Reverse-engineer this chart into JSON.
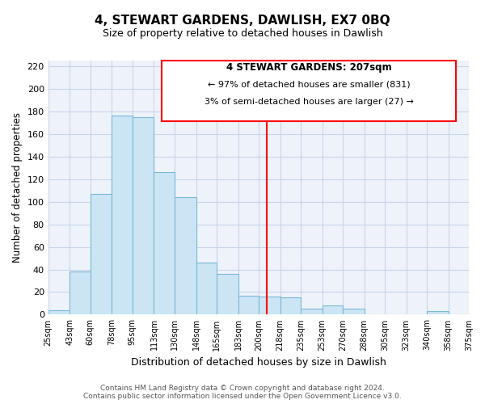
{
  "title": "4, STEWART GARDENS, DAWLISH, EX7 0BQ",
  "subtitle": "Size of property relative to detached houses in Dawlish",
  "xlabel": "Distribution of detached houses by size in Dawlish",
  "ylabel": "Number of detached properties",
  "bin_labels": [
    "25sqm",
    "43sqm",
    "60sqm",
    "78sqm",
    "95sqm",
    "113sqm",
    "130sqm",
    "148sqm",
    "165sqm",
    "183sqm",
    "200sqm",
    "218sqm",
    "235sqm",
    "253sqm",
    "270sqm",
    "288sqm",
    "305sqm",
    "323sqm",
    "340sqm",
    "358sqm",
    "375sqm"
  ],
  "bin_edges": [
    25,
    43,
    60,
    78,
    95,
    113,
    130,
    148,
    165,
    183,
    200,
    218,
    235,
    253,
    270,
    288,
    305,
    323,
    340,
    358,
    375
  ],
  "bar_heights": [
    4,
    38,
    107,
    176,
    175,
    126,
    104,
    46,
    36,
    17,
    16,
    15,
    5,
    8,
    5,
    0,
    0,
    0,
    3,
    0,
    0
  ],
  "bar_color": "#cce5f5",
  "bar_edge_color": "#7ab8d8",
  "vline_x": 207,
  "vline_color": "red",
  "annotation_title": "4 STEWART GARDENS: 207sqm",
  "annotation_line1": "← 97% of detached houses are smaller (831)",
  "annotation_line2": "3% of semi-detached houses are larger (27) →",
  "annotation_box_color": "#ffffff",
  "annotation_box_edge_color": "red",
  "ylim": [
    0,
    225
  ],
  "yticks": [
    0,
    20,
    40,
    60,
    80,
    100,
    120,
    140,
    160,
    180,
    200,
    220
  ],
  "footer_line1": "Contains HM Land Registry data © Crown copyright and database right 2024.",
  "footer_line2": "Contains public sector information licensed under the Open Government Licence v3.0.",
  "background_color": "#ffffff",
  "plot_bg_color": "#eef3fa",
  "grid_color": "#c8d4e8"
}
